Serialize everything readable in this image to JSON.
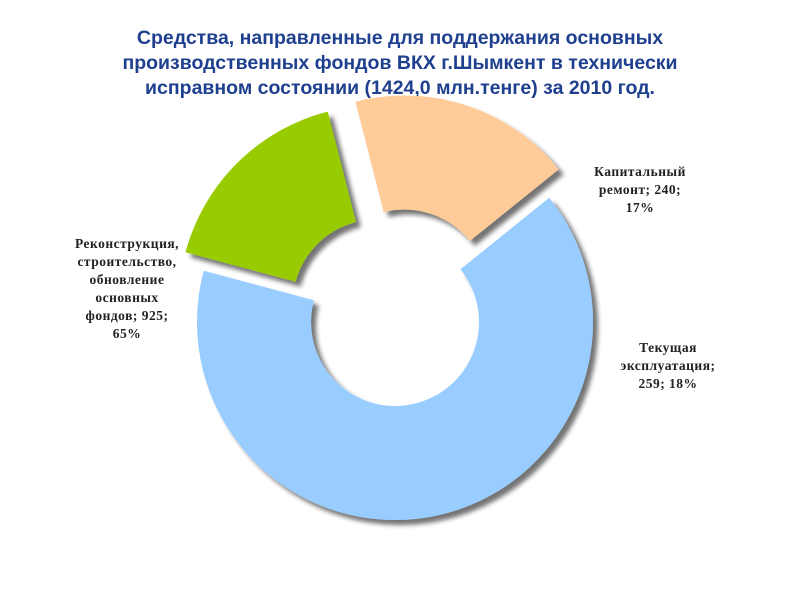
{
  "chart_data": {
    "type": "pie",
    "variant": "donut-exploded",
    "title": "Средства, направленные для поддержания основных производственных фондов ВКХ г.Шымкент в технически исправном состоянии (1424,0 млн.тенге) за 2010 год.",
    "title_lines": [
      "Средства, направленные для поддержания основных",
      "производственных фондов ВКХ г.Шымкент в технически",
      "исправном состоянии (1424,0 млн.тенге) за 2010 год."
    ],
    "slices": [
      {
        "name": "Капитальный ремонт",
        "value": 240,
        "percent": 17,
        "color": "#99CC00",
        "label_lines": [
          "Капитальный",
          "ремонт; 240;",
          "17%"
        ]
      },
      {
        "name": "Текущая эксплуатация",
        "value": 259,
        "percent": 18,
        "color": "#FFCC99",
        "label_lines": [
          "Текущая",
          "эксплуатация;",
          "259; 18%"
        ]
      },
      {
        "name": "Реконструкция, строительство, обновление основных фондов",
        "value": 925,
        "percent": 65,
        "color": "#99CCFF",
        "label_lines": [
          "Реконструкция,",
          "строительство,",
          "обновление",
          "основных",
          "фондов; 925;",
          "65%"
        ]
      }
    ]
  }
}
